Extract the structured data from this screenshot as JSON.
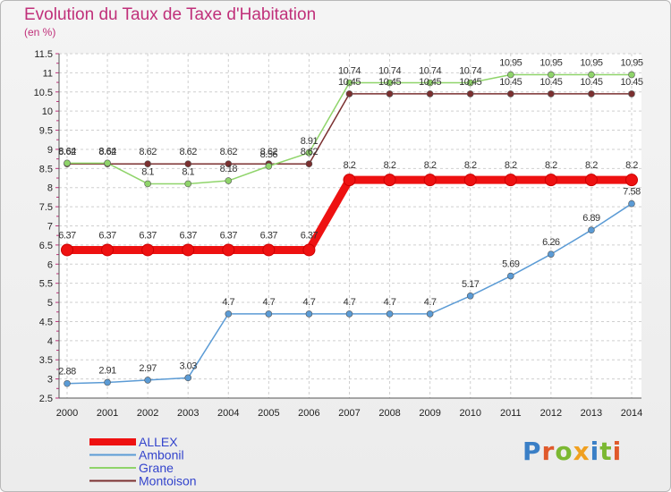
{
  "header": {
    "title": "Evolution du Taux de Taxe d'Habitation",
    "subtitle": "(en %)"
  },
  "logo": {
    "text": "Proxiti",
    "colors": [
      "#3a7fc6",
      "#e05a2b",
      "#7bb832",
      "#f0a020",
      "#3a7fc6",
      "#7bb832",
      "#e05a2b"
    ]
  },
  "chart_data": {
    "type": "line",
    "x": [
      2000,
      2001,
      2002,
      2003,
      2004,
      2005,
      2006,
      2007,
      2008,
      2009,
      2010,
      2011,
      2012,
      2013,
      2014
    ],
    "ylim": [
      2.5,
      11.5
    ],
    "yticks": [
      2.5,
      3,
      3.5,
      4,
      4.5,
      5,
      5.5,
      6,
      6.5,
      7,
      7.5,
      8,
      8.5,
      9,
      9.5,
      10,
      10.5,
      11,
      11.5
    ],
    "ytick_labels": [
      "2.5",
      "3",
      "3.5",
      "4",
      "4.5",
      "5",
      "5.5",
      "6",
      "6.5",
      "7",
      "7.5",
      "8",
      "8.5",
      "9",
      "9.5",
      "10",
      "10.5",
      "11",
      "11.5"
    ],
    "grid": true,
    "legend_placement": "bottom-left",
    "series": [
      {
        "name": "ALLEX",
        "color": "#ee1111",
        "values": [
          6.37,
          6.37,
          6.37,
          6.37,
          6.37,
          6.37,
          6.37,
          8.2,
          8.2,
          8.2,
          8.2,
          8.2,
          8.2,
          8.2,
          8.2
        ],
        "labels": [
          "6.37",
          "6.37",
          "6.37",
          "6.37",
          "6.37",
          "6.37",
          "6.37",
          "8.2",
          "8.2",
          "8.2",
          "8.2",
          "8.2",
          "8.2",
          "8.2",
          "8.2"
        ]
      },
      {
        "name": "Ambonil",
        "color": "#5b9bd5",
        "values": [
          2.88,
          2.91,
          2.97,
          3.03,
          4.7,
          4.7,
          4.7,
          4.7,
          4.7,
          4.7,
          5.17,
          5.69,
          6.26,
          6.89,
          7.58
        ],
        "labels": [
          "2.88",
          "2.91",
          "2.97",
          "3.03",
          "4.7",
          "4.7",
          "4.7",
          "4.7",
          "4.7",
          "4.7",
          "5.17",
          "5.69",
          "6.26",
          "6.89",
          "7.58"
        ]
      },
      {
        "name": "Grane",
        "color": "#8fd46a",
        "values": [
          8.64,
          8.64,
          8.1,
          8.1,
          8.18,
          8.56,
          8.91,
          10.74,
          10.74,
          10.74,
          10.74,
          10.95,
          10.95,
          10.95,
          10.95
        ],
        "labels": [
          "8.64",
          "8.64",
          "8.1",
          "8.1",
          "8.18",
          "8.56",
          "8.91",
          "10.74",
          "10.74",
          "10.74",
          "10.74",
          "10.95",
          "10.95",
          "10.95",
          "10.95"
        ]
      },
      {
        "name": "Montoison",
        "color": "#7b3030",
        "values": [
          8.62,
          8.62,
          8.62,
          8.62,
          8.62,
          8.62,
          8.62,
          10.45,
          10.45,
          10.45,
          10.45,
          10.45,
          10.45,
          10.45,
          10.45
        ],
        "labels": [
          "8.62",
          "8.62",
          "8.62",
          "8.62",
          "8.62",
          "8.62",
          "8.62",
          "10.45",
          "10.45",
          "10.45",
          "10.45",
          "10.45",
          "10.45",
          "10.45",
          "10.45"
        ]
      }
    ]
  }
}
